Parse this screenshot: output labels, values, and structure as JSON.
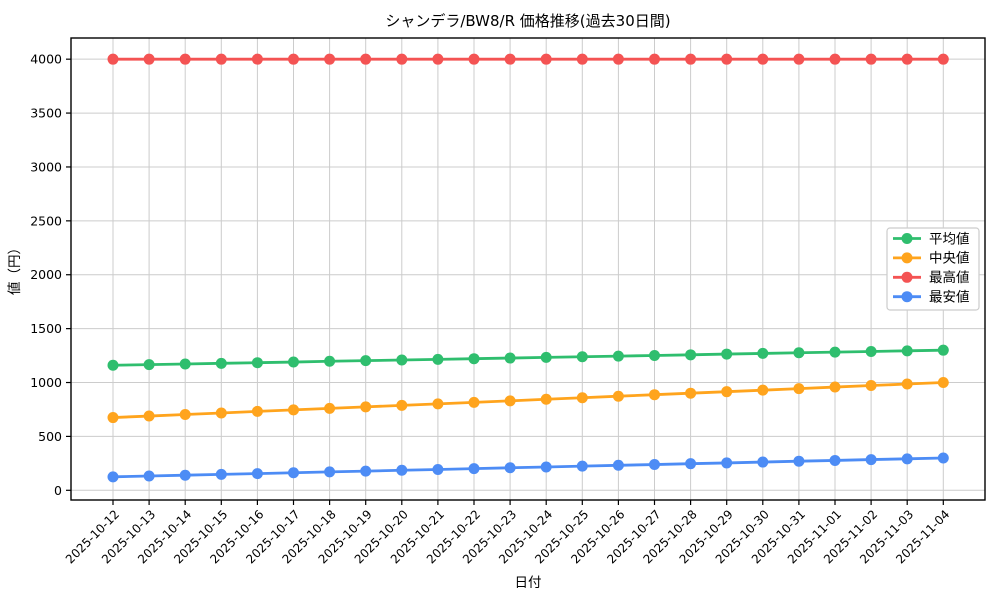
{
  "figure": {
    "title": "シャンデラ/BW8/R  価格推移(過去30日間)",
    "xlabel": "日付",
    "ylabel": "値（円）"
  },
  "chart_data": {
    "type": "line",
    "title": "シャンデラ/BW8/R  価格推移(過去30日間)",
    "xlabel": "日付",
    "ylabel": "値（円）",
    "x": [
      "2025-10-12",
      "2025-10-13",
      "2025-10-14",
      "2025-10-15",
      "2025-10-16",
      "2025-10-17",
      "2025-10-18",
      "2025-10-19",
      "2025-10-20",
      "2025-10-21",
      "2025-10-22",
      "2025-10-23",
      "2025-10-24",
      "2025-10-25",
      "2025-10-26",
      "2025-10-27",
      "2025-10-28",
      "2025-10-29",
      "2025-10-30",
      "2025-10-31",
      "2025-11-01",
      "2025-11-02",
      "2025-11-03",
      "2025-11-04"
    ],
    "series": [
      {
        "key": "average",
        "name": "平均値",
        "color": "#2fbe6e",
        "values": [
          1160,
          1166,
          1172,
          1178,
          1184,
          1190,
          1197,
          1203,
          1209,
          1215,
          1221,
          1227,
          1233,
          1239,
          1245,
          1251,
          1257,
          1264,
          1270,
          1276,
          1282,
          1288,
          1294,
          1300
        ]
      },
      {
        "key": "median",
        "name": "中央値",
        "color": "#ffa41d",
        "values": [
          675,
          689,
          703,
          717,
          732,
          746,
          760,
          774,
          788,
          802,
          816,
          830,
          845,
          859,
          873,
          887,
          901,
          915,
          929,
          943,
          958,
          972,
          986,
          1000
        ]
      },
      {
        "key": "max",
        "name": "最高値",
        "color": "#f45353",
        "values": [
          4000,
          4000,
          4000,
          4000,
          4000,
          4000,
          4000,
          4000,
          4000,
          4000,
          4000,
          4000,
          4000,
          4000,
          4000,
          4000,
          4000,
          4000,
          4000,
          4000,
          4000,
          4000,
          4000,
          4000
        ]
      },
      {
        "key": "min",
        "name": "最安値",
        "color": "#4d8cf5",
        "values": [
          125,
          133,
          140,
          148,
          155,
          163,
          171,
          178,
          186,
          193,
          201,
          209,
          216,
          224,
          232,
          239,
          247,
          254,
          262,
          270,
          277,
          285,
          292,
          300
        ]
      }
    ],
    "yticks": [
      0,
      500,
      1000,
      1500,
      2000,
      2500,
      3000,
      3500,
      4000
    ],
    "ylim": [
      -42,
      4216
    ],
    "grid": true,
    "legend_position": "center-right",
    "marker": "circle"
  },
  "colors": {
    "grid": "#cccccc",
    "spine": "#000000",
    "legend_border": "#cccccc",
    "background": "#ffffff"
  }
}
